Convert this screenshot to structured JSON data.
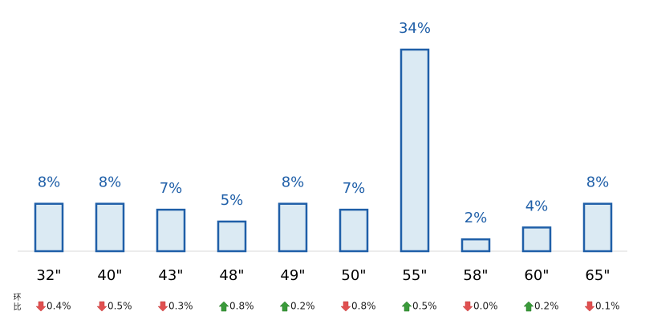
{
  "chart_data": {
    "type": "bar",
    "categories": [
      "32\"",
      "40\"",
      "43\"",
      "48\"",
      "49\"",
      "50\"",
      "55\"",
      "58\"",
      "60\"",
      "65\""
    ],
    "values": [
      8,
      8,
      7,
      5,
      8,
      7,
      34,
      2,
      4,
      8
    ],
    "value_labels": [
      "8%",
      "8%",
      "7%",
      "5%",
      "8%",
      "7%",
      "34%",
      "2%",
      "4%",
      "8%"
    ],
    "color": "#1f5fa8",
    "fill": "#dbeaf3",
    "change_title": "环比",
    "change_labels": [
      "0.4%",
      "0.5%",
      "0.3%",
      "0.8%",
      "0.2%",
      "0.8%",
      "0.5%",
      "0.0%",
      "0.2%",
      "0.1%"
    ],
    "change_directions": [
      "down",
      "down",
      "down",
      "up",
      "up",
      "down",
      "up",
      "down",
      "up",
      "down"
    ]
  }
}
